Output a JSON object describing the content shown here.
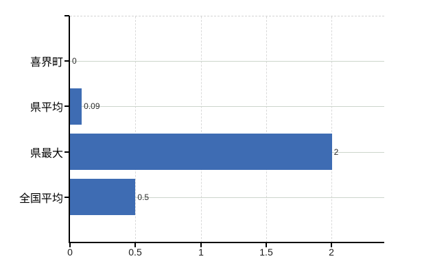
{
  "chart_data": {
    "type": "bar",
    "orientation": "horizontal",
    "title": "",
    "categories": [
      "喜界町",
      "県平均",
      "県最大",
      "全国平均"
    ],
    "values": [
      0,
      0.09,
      2,
      0.5
    ],
    "value_labels": [
      "0",
      "0.09",
      "2",
      "0.5"
    ],
    "x_ticks": [
      0,
      0.5,
      1,
      1.5,
      2
    ],
    "x_tick_labels": [
      "0",
      "0.5",
      "1",
      "1.5",
      "2"
    ],
    "xlim": [
      0,
      2.4
    ],
    "grid": true,
    "legend": false,
    "colors": {
      "bar": "#3e6cb3",
      "axis": "#000000",
      "h_gridline": "#ccd5cb",
      "v_gridline": "#d9d9d9",
      "plot_border": "#d4d4d4",
      "category_text": "#000000",
      "value_text": "#2b2b2b",
      "tick_text": "#1a1a1a",
      "background": "#ffffff"
    }
  }
}
